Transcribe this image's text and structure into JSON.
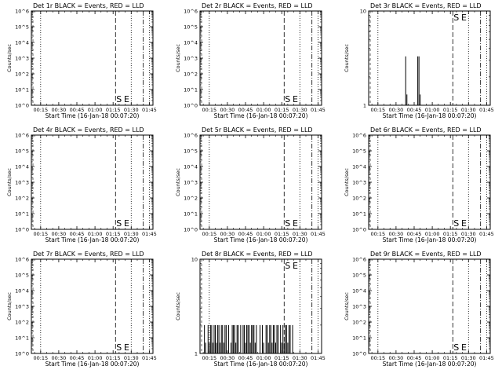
{
  "chart_data": [
    {
      "type": "bar",
      "title": "Det 1r BLACK = Events, RED = LLD",
      "ylabel": "Counts/sec",
      "xlabel": "Start Time (16-Jan-18 00:07:20)",
      "yscale": "log",
      "ylim": [
        1,
        1000000
      ],
      "ytick_labels": [
        "10^0",
        "10^1",
        "10^2",
        "10^3",
        "10^4",
        "10^5",
        "10^6"
      ],
      "xtick_labels": [
        "00:15",
        "00:30",
        "00:45",
        "01:00",
        "01:15",
        "01:30",
        "01:45"
      ],
      "markers": [
        "S",
        "E"
      ],
      "bars": []
    },
    {
      "type": "bar",
      "title": "Det 2r BLACK = Events, RED = LLD",
      "ylabel": "Counts/sec",
      "xlabel": "Start Time (16-Jan-18 00:07:20)",
      "yscale": "log",
      "ylim": [
        1,
        1000000
      ],
      "ytick_labels": [
        "10^0",
        "10^1",
        "10^2",
        "10^3",
        "10^4",
        "10^5",
        "10^6"
      ],
      "xtick_labels": [
        "00:15",
        "00:30",
        "00:45",
        "01:00",
        "01:15",
        "01:30",
        "01:45"
      ],
      "markers": [
        "S",
        "E"
      ],
      "bars": []
    },
    {
      "type": "bar",
      "title": "Det 3r BLACK = Events, RED = LLD",
      "ylabel": "Counts/sec",
      "xlabel": "Start Time (16-Jan-18 00:07:20)",
      "yscale": "log",
      "ylim": [
        1,
        10
      ],
      "ytick_labels": [
        "1",
        "10"
      ],
      "xtick_labels": [
        "00:15",
        "00:30",
        "00:45",
        "01:00",
        "01:15",
        "01:30",
        "01:45"
      ],
      "markers": [
        "S",
        "E"
      ],
      "bars": [
        [
          38,
          3.3
        ],
        [
          39,
          1.3
        ],
        [
          48,
          3.3
        ],
        [
          49,
          3.3
        ],
        [
          50,
          1.3
        ]
      ]
    },
    {
      "type": "bar",
      "title": "Det 4r BLACK = Events, RED = LLD",
      "ylabel": "Counts/sec",
      "xlabel": "Start Time (16-Jan-18 00:07:20)",
      "yscale": "log",
      "ylim": [
        1,
        1000000
      ],
      "ytick_labels": [
        "10^0",
        "10^1",
        "10^2",
        "10^3",
        "10^4",
        "10^5",
        "10^6"
      ],
      "xtick_labels": [
        "00:15",
        "00:30",
        "00:45",
        "01:00",
        "01:15",
        "01:30",
        "01:45"
      ],
      "markers": [
        "S",
        "E"
      ],
      "bars": []
    },
    {
      "type": "bar",
      "title": "Det 5r BLACK = Events, RED = LLD",
      "ylabel": "Counts/sec",
      "xlabel": "Start Time (16-Jan-18 00:07:20)",
      "yscale": "log",
      "ylim": [
        1,
        1000000
      ],
      "ytick_labels": [
        "10^0",
        "10^1",
        "10^2",
        "10^3",
        "10^4",
        "10^5",
        "10^6"
      ],
      "xtick_labels": [
        "00:15",
        "00:30",
        "00:45",
        "01:00",
        "01:15",
        "01:30",
        "01:45"
      ],
      "markers": [
        "S",
        "E"
      ],
      "bars": []
    },
    {
      "type": "bar",
      "title": "Det 6r BLACK = Events, RED = LLD",
      "ylabel": "Counts/sec",
      "xlabel": "Start Time (16-Jan-18 00:07:20)",
      "yscale": "log",
      "ylim": [
        1,
        1000000
      ],
      "ytick_labels": [
        "10^0",
        "10^1",
        "10^2",
        "10^3",
        "10^4",
        "10^5",
        "10^6"
      ],
      "xtick_labels": [
        "00:15",
        "00:30",
        "00:45",
        "01:00",
        "01:15",
        "01:30",
        "01:45"
      ],
      "markers": [
        "S",
        "E"
      ],
      "bars": []
    },
    {
      "type": "bar",
      "title": "Det 7r BLACK = Events, RED = LLD",
      "ylabel": "Counts/sec",
      "xlabel": "Start Time (16-Jan-18 00:07:20)",
      "yscale": "log",
      "ylim": [
        1,
        1000000
      ],
      "ytick_labels": [
        "10^0",
        "10^1",
        "10^2",
        "10^3",
        "10^4",
        "10^5",
        "10^6"
      ],
      "xtick_labels": [
        "00:15",
        "00:30",
        "00:45",
        "01:00",
        "01:15",
        "01:30",
        "01:45"
      ],
      "markers": [
        "S",
        "E"
      ],
      "bars": []
    },
    {
      "type": "bar",
      "title": "Det 8r BLACK = Events, RED = LLD",
      "ylabel": "Counts/sec",
      "xlabel": "Start Time (16-Jan-18 00:07:20)",
      "yscale": "log",
      "ylim": [
        1,
        10
      ],
      "ytick_labels": [
        "1",
        "10"
      ],
      "xtick_labels": [
        "00:15",
        "00:30",
        "00:45",
        "01:00",
        "01:15",
        "01:30",
        "01:45"
      ],
      "markers": [
        "S",
        "E"
      ],
      "bars": [
        [
          11,
          2.0
        ],
        [
          12,
          1.3
        ],
        [
          14,
          2.0
        ],
        [
          15,
          1.3
        ],
        [
          16,
          2.0
        ],
        [
          17,
          2.0
        ],
        [
          18,
          1.3
        ],
        [
          19,
          2.0
        ],
        [
          20,
          2.0
        ],
        [
          21,
          1.3
        ],
        [
          22,
          2.0
        ],
        [
          23,
          2.0
        ],
        [
          24,
          1.3
        ],
        [
          25,
          2.0
        ],
        [
          26,
          2.0
        ],
        [
          27,
          1.3
        ],
        [
          28,
          2.0
        ],
        [
          29,
          2.0
        ],
        [
          31,
          2.0
        ],
        [
          33,
          1.3
        ],
        [
          34,
          2.0
        ],
        [
          35,
          2.0
        ],
        [
          36,
          2.0
        ],
        [
          37,
          1.3
        ],
        [
          38,
          2.0
        ],
        [
          39,
          2.0
        ],
        [
          41,
          2.0
        ],
        [
          43,
          2.0
        ],
        [
          44,
          2.0
        ],
        [
          45,
          1.3
        ],
        [
          46,
          2.0
        ],
        [
          47,
          2.0
        ],
        [
          48,
          2.0
        ],
        [
          49,
          1.3
        ],
        [
          50,
          2.0
        ],
        [
          51,
          2.0
        ],
        [
          52,
          2.0
        ],
        [
          53,
          1.3
        ],
        [
          54,
          2.0
        ],
        [
          57,
          2.0
        ],
        [
          59,
          2.0
        ],
        [
          60,
          1.3
        ],
        [
          62,
          2.0
        ],
        [
          63,
          2.0
        ],
        [
          64,
          1.3
        ],
        [
          65,
          2.0
        ],
        [
          66,
          2.0
        ],
        [
          67,
          1.3
        ],
        [
          68,
          2.0
        ],
        [
          69,
          2.0
        ],
        [
          70,
          1.3
        ],
        [
          71,
          2.0
        ],
        [
          72,
          2.0
        ],
        [
          74,
          2.0
        ],
        [
          75,
          1.3
        ],
        [
          76,
          2.0
        ],
        [
          77,
          1.3
        ],
        [
          78,
          2.0
        ],
        [
          79,
          2.0
        ],
        [
          80,
          1.3
        ],
        [
          81,
          2.0
        ],
        [
          82,
          2.0
        ],
        [
          84,
          2.0
        ]
      ]
    },
    {
      "type": "bar",
      "title": "Det 9r BLACK = Events, RED = LLD",
      "ylabel": "Counts/sec",
      "xlabel": "Start Time (16-Jan-18 00:07:20)",
      "yscale": "log",
      "ylim": [
        1,
        1000000
      ],
      "ytick_labels": [
        "10^0",
        "10^1",
        "10^2",
        "10^3",
        "10^4",
        "10^5",
        "10^6"
      ],
      "xtick_labels": [
        "00:15",
        "00:30",
        "00:45",
        "01:00",
        "01:15",
        "01:30",
        "01:45"
      ],
      "markers": [
        "S",
        "E"
      ],
      "bars": []
    }
  ]
}
